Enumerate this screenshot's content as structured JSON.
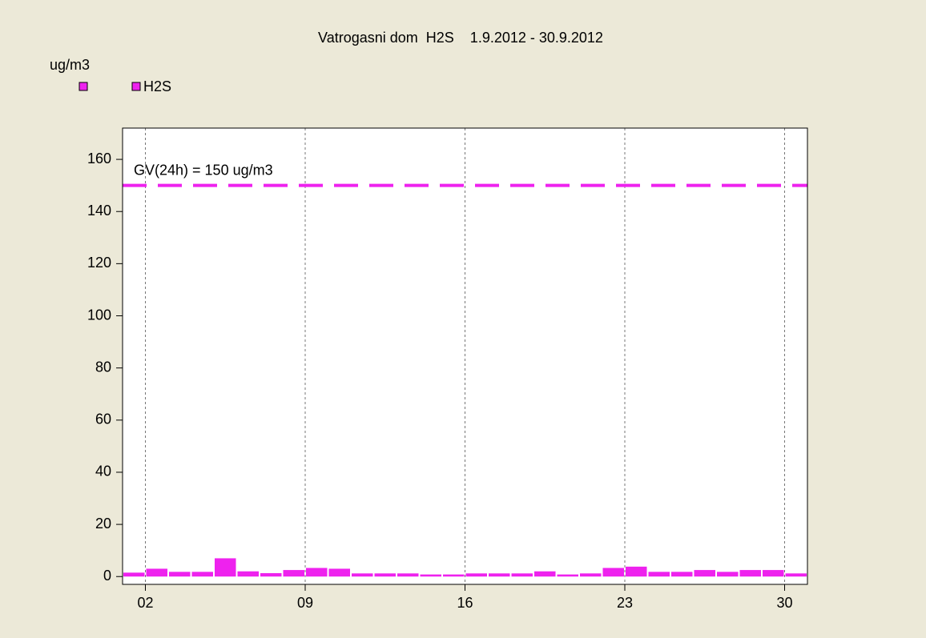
{
  "chart_data": {
    "type": "bar",
    "title": "Vatrogasni dom  H2S    1.9.2012 - 30.9.2012",
    "y_label": "ug/m3",
    "series": [
      {
        "name": "H2S",
        "color": "#ee22ee",
        "values": [
          1.5,
          3,
          1.8,
          1.8,
          7,
          2,
          1.3,
          2.5,
          3.3,
          3,
          1.2,
          1.2,
          1.2,
          0.8,
          0.8,
          1.2,
          1.2,
          1.2,
          2,
          0.8,
          1.2,
          3.3,
          3.8,
          1.8,
          1.8,
          2.5,
          1.8,
          2.5,
          2.5,
          1.2
        ]
      }
    ],
    "x": [
      1,
      2,
      3,
      4,
      5,
      6,
      7,
      8,
      9,
      10,
      11,
      12,
      13,
      14,
      15,
      16,
      17,
      18,
      19,
      20,
      21,
      22,
      23,
      24,
      25,
      26,
      27,
      28,
      29,
      30
    ],
    "xlim": [
      1,
      31
    ],
    "xticks": [
      {
        "value": 2,
        "label": "02"
      },
      {
        "value": 9,
        "label": "09"
      },
      16,
      23,
      30
    ],
    "ylim": [
      -3,
      172
    ],
    "yticks": [
      0,
      20,
      40,
      60,
      80,
      100,
      120,
      140,
      160
    ],
    "limit": {
      "value": 150,
      "label": "GV(24h) = 150 ug/m3",
      "color": "#ee22ee"
    },
    "grid_x": true
  }
}
